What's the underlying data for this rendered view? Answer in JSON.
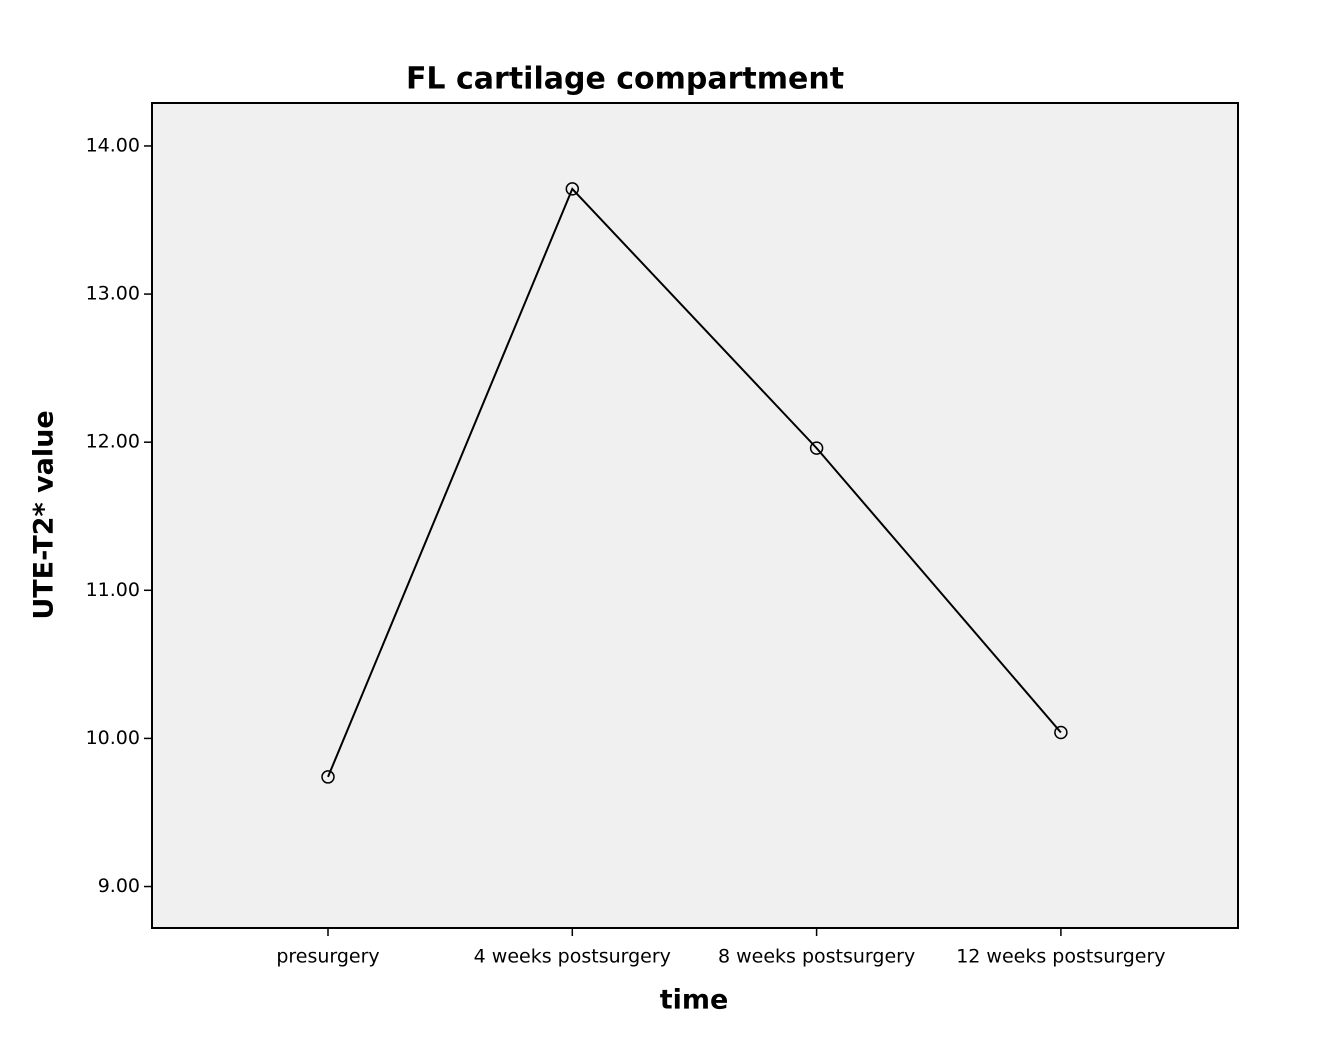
{
  "chart_data": {
    "type": "line",
    "title": "FL cartilage compartment",
    "x_label": "time",
    "y_label": "UTE-T2* value",
    "categories": [
      "presurgery",
      "4 weeks postsurgery",
      "8 weeks postsurgery",
      "12 weeks postsurgery"
    ],
    "values": [
      9.74,
      13.71,
      11.96,
      10.04
    ],
    "color": "#000000",
    "ylim": [
      8.72,
      14.29
    ],
    "yticks": [
      {
        "value": 9,
        "label": "9.00"
      },
      {
        "value": 10,
        "label": "10.00"
      },
      {
        "value": 11,
        "label": "11.00"
      },
      {
        "value": 12,
        "label": "12.00"
      },
      {
        "value": 13,
        "label": "13.00"
      },
      {
        "value": 14,
        "label": "14.00"
      }
    ],
    "grid": false
  }
}
